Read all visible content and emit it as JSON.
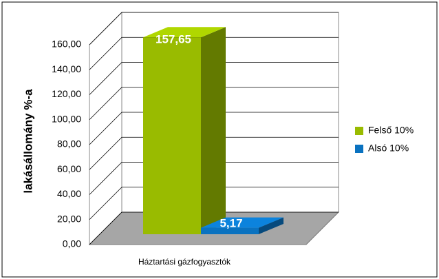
{
  "chart_data": {
    "type": "bar3d",
    "categories": [
      "Háztartási gázfogyasztók"
    ],
    "series": [
      {
        "name": "Felső 10%",
        "color": "#99bb00",
        "values": [
          157.65
        ],
        "value_labels": [
          "157,65"
        ]
      },
      {
        "name": "Alsó 10%",
        "color": "#0a72c0",
        "values": [
          5.17
        ],
        "value_labels": [
          "5,17"
        ]
      }
    ],
    "y_label": "lakásállomány %-a",
    "ylim": [
      0,
      160
    ],
    "yticks": [
      {
        "value": 0,
        "label": "0,00"
      },
      {
        "value": 20,
        "label": "20,00"
      },
      {
        "value": 40,
        "label": "40,00"
      },
      {
        "value": 60,
        "label": "60,00"
      },
      {
        "value": 80,
        "label": "80,00"
      },
      {
        "value": 100,
        "label": "100,00"
      },
      {
        "value": 120,
        "label": "120,00"
      },
      {
        "value": 140,
        "label": "140,00"
      },
      {
        "value": 160,
        "label": "160,00"
      }
    ],
    "grid": true,
    "legend": "right"
  }
}
